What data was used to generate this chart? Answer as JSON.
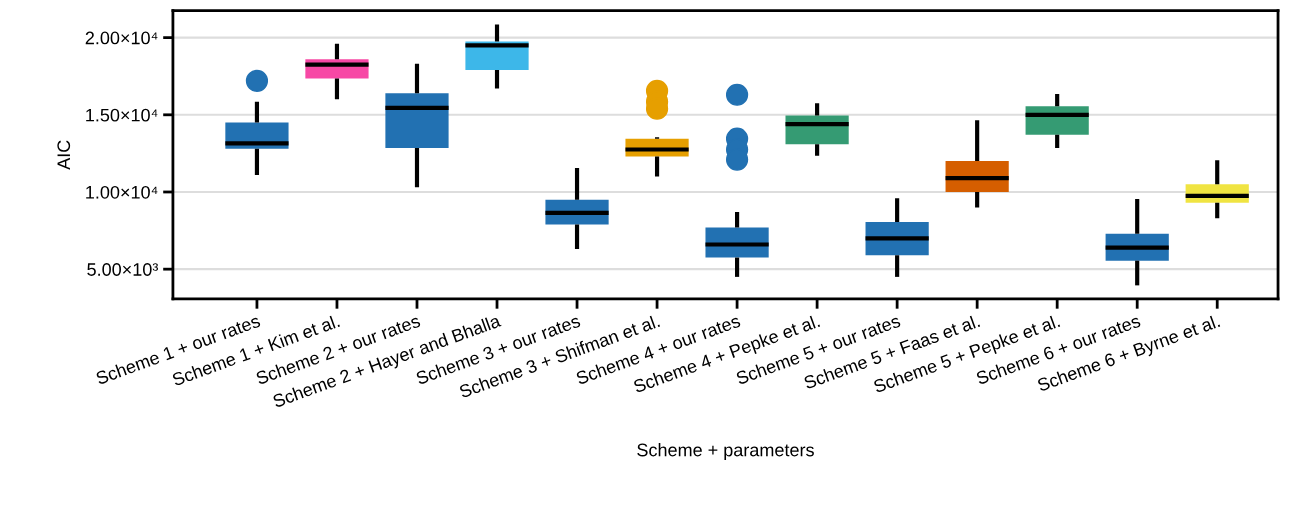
{
  "chart_data": {
    "type": "box",
    "xlabel": "Scheme + parameters",
    "ylabel": "AIC",
    "categories": [
      "Scheme 1 + our rates",
      "Scheme 1 + Kim et al.",
      "Scheme 2 + our rates",
      "Scheme 2 + Hayer and Bhalla",
      "Scheme 3 + our rates",
      "Scheme 3 + Shifman et al.",
      "Scheme 4 + our rates",
      "Scheme 4 + Pepke et al.",
      "Scheme 5 + our rates",
      "Scheme 5 + Faas et al.",
      "Scheme 5 + Pepke et al.",
      "Scheme 6 + our rates",
      "Scheme 6 + Byrne et al."
    ],
    "colors": [
      "#2271b2",
      "#f748a5",
      "#2271b2",
      "#3db7e9",
      "#2271b2",
      "#e69f00",
      "#2271b2",
      "#359b73",
      "#2271b2",
      "#d55e00",
      "#359b73",
      "#2271b2",
      "#f0e442"
    ],
    "boxes": [
      {
        "low": 11100,
        "q1": 12800,
        "median": 13150,
        "q3": 14500,
        "high": 15850,
        "outliers": [
          17200
        ]
      },
      {
        "low": 16000,
        "q1": 17350,
        "median": 18250,
        "q3": 18600,
        "high": 19600
      },
      {
        "low": 10300,
        "q1": 12850,
        "median": 15450,
        "q3": 16400,
        "high": 18300
      },
      {
        "low": 16700,
        "q1": 17900,
        "median": 19500,
        "q3": 19750,
        "high": 20850
      },
      {
        "low": 6300,
        "q1": 7900,
        "median": 8650,
        "q3": 9500,
        "high": 11550
      },
      {
        "low": 11000,
        "q1": 12300,
        "median": 12750,
        "q3": 13450,
        "high": 13550,
        "outliers": [
          16550,
          15850,
          15400
        ]
      },
      {
        "low": 4500,
        "q1": 5750,
        "median": 6600,
        "q3": 7700,
        "high": 8700,
        "outliers": [
          16300,
          13450,
          12750,
          12100
        ]
      },
      {
        "low": 12350,
        "q1": 13100,
        "median": 14400,
        "q3": 14950,
        "high": 15750
      },
      {
        "low": 4500,
        "q1": 5900,
        "median": 7000,
        "q3": 8050,
        "high": 9600
      },
      {
        "low": 9000,
        "q1": 10000,
        "median": 10900,
        "q3": 12000,
        "high": 14650
      },
      {
        "low": 12850,
        "q1": 13700,
        "median": 15000,
        "q3": 15550,
        "high": 16350
      },
      {
        "low": 3950,
        "q1": 5550,
        "median": 6400,
        "q3": 7300,
        "high": 9550
      },
      {
        "low": 8300,
        "q1": 9300,
        "median": 9750,
        "q3": 10500,
        "high": 12050
      }
    ],
    "ylim": [
      3070,
      21750
    ],
    "yticks": [
      {
        "value": 5000,
        "label": "5.00×10³"
      },
      {
        "value": 10000,
        "label": "1.00×10⁴"
      },
      {
        "value": 15000,
        "label": "1.50×10⁴"
      },
      {
        "value": 20000,
        "label": "2.00×10⁴"
      }
    ],
    "grid": "y"
  }
}
